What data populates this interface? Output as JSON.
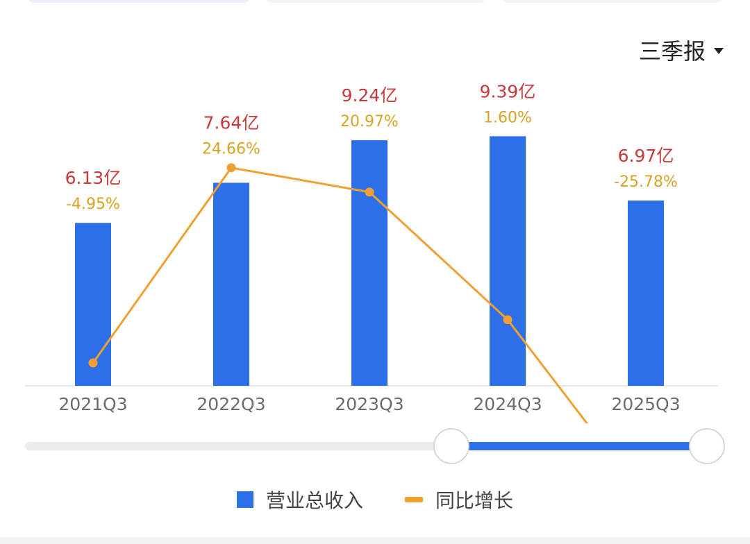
{
  "period_selector": {
    "label": "三季报",
    "icon": "caret-down-icon"
  },
  "colors": {
    "bar": "#2d6fe6",
    "line": "#f0a032",
    "value_label": "#c8393b",
    "growth_label": "#d9a322"
  },
  "chart_data": {
    "type": "bar",
    "categories": [
      "2021Q3",
      "2022Q3",
      "2023Q3",
      "2024Q3",
      "2025Q3"
    ],
    "series": [
      {
        "name": "营业总收入",
        "type": "bar",
        "unit": "亿",
        "values": [
          6.13,
          7.64,
          9.24,
          9.39,
          6.97
        ]
      },
      {
        "name": "同比增长",
        "type": "line",
        "unit": "%",
        "values": [
          -4.95,
          24.66,
          20.97,
          1.6,
          -25.78
        ]
      }
    ],
    "value_labels": [
      "6.13亿",
      "7.64亿",
      "9.24亿",
      "9.39亿",
      "6.97亿"
    ],
    "growth_labels": [
      "-4.95%",
      "24.66%",
      "20.97%",
      "1.60%",
      "-25.78%"
    ],
    "xlabel": "",
    "ylabel": "",
    "grid": false,
    "legend": "bottom-center"
  },
  "legend": [
    {
      "label": "营业总收入",
      "icon": "bar-swatch"
    },
    {
      "label": "同比增长",
      "icon": "line-swatch"
    }
  ]
}
